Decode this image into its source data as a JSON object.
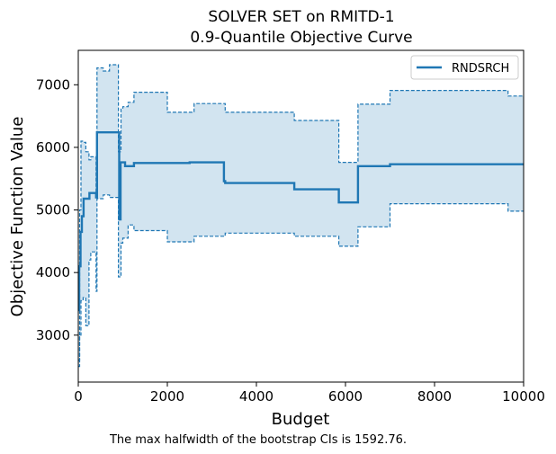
{
  "chart_data": {
    "type": "line",
    "title": "SOLVER SET on RMITD-1",
    "subtitle": "0.9-Quantile Objective Curve",
    "xlabel": "Budget",
    "ylabel": "Objective Function Value",
    "xlim": [
      0,
      10000
    ],
    "ylim": [
      2250,
      7550
    ],
    "x_ticks": [
      0,
      2000,
      4000,
      6000,
      8000,
      10000
    ],
    "x_tick_labels": [
      "0",
      "2000",
      "4000",
      "6000",
      "8000",
      "10000"
    ],
    "y_ticks": [
      3000,
      4000,
      5000,
      6000,
      7000
    ],
    "y_tick_labels": [
      "3000",
      "4000",
      "5000",
      "6000",
      "7000"
    ],
    "grid": false,
    "legend_position": "top-right",
    "series": [
      {
        "name": "RNDSRCH",
        "color": "#1f77b4",
        "style": "step",
        "x": [
          0,
          20,
          50,
          80,
          120,
          200,
          250,
          300,
          400,
          420,
          900,
          920,
          950,
          1050,
          1250,
          2500,
          3270,
          3300,
          4850,
          5850,
          6250,
          6280,
          7000,
          10000
        ],
        "y": [
          3400,
          4100,
          4650,
          4900,
          5180,
          5180,
          5270,
          5270,
          5200,
          6240,
          6240,
          4850,
          5760,
          5700,
          5750,
          5760,
          5460,
          5430,
          5330,
          5120,
          5120,
          5700,
          5730,
          5730
        ]
      }
    ],
    "ci_upper": {
      "x": [
        0,
        30,
        60,
        110,
        170,
        240,
        280,
        350,
        400,
        420,
        560,
        700,
        900,
        960,
        1000,
        1120,
        1250,
        2000,
        2600,
        3300,
        4850,
        5850,
        6250,
        6280,
        7000,
        9650,
        10000
      ],
      "y": [
        2500,
        5000,
        6100,
        6080,
        5930,
        5800,
        5850,
        5850,
        5220,
        7270,
        7220,
        7320,
        5930,
        6610,
        6650,
        6720,
        6880,
        6560,
        6700,
        6560,
        6430,
        5760,
        5760,
        6690,
        6910,
        6820,
        6820
      ]
    },
    "ci_lower": {
      "x": [
        0,
        30,
        60,
        110,
        170,
        240,
        280,
        350,
        400,
        420,
        560,
        700,
        900,
        960,
        1000,
        1120,
        1250,
        2000,
        2600,
        3300,
        4850,
        5850,
        6250,
        6280,
        7000,
        9650,
        10000
      ],
      "y": [
        2600,
        3000,
        3550,
        3600,
        3150,
        4200,
        4330,
        4330,
        3700,
        5180,
        5240,
        5200,
        3930,
        4470,
        4550,
        4760,
        4670,
        4490,
        4580,
        4630,
        4580,
        4420,
        4420,
        4730,
        5100,
        4980,
        4980
      ]
    },
    "ci_color": "#1f77b4",
    "ci_fill_opacity": 0.2
  },
  "caption": "The max halfwidth of the bootstrap CIs is 1592.76."
}
